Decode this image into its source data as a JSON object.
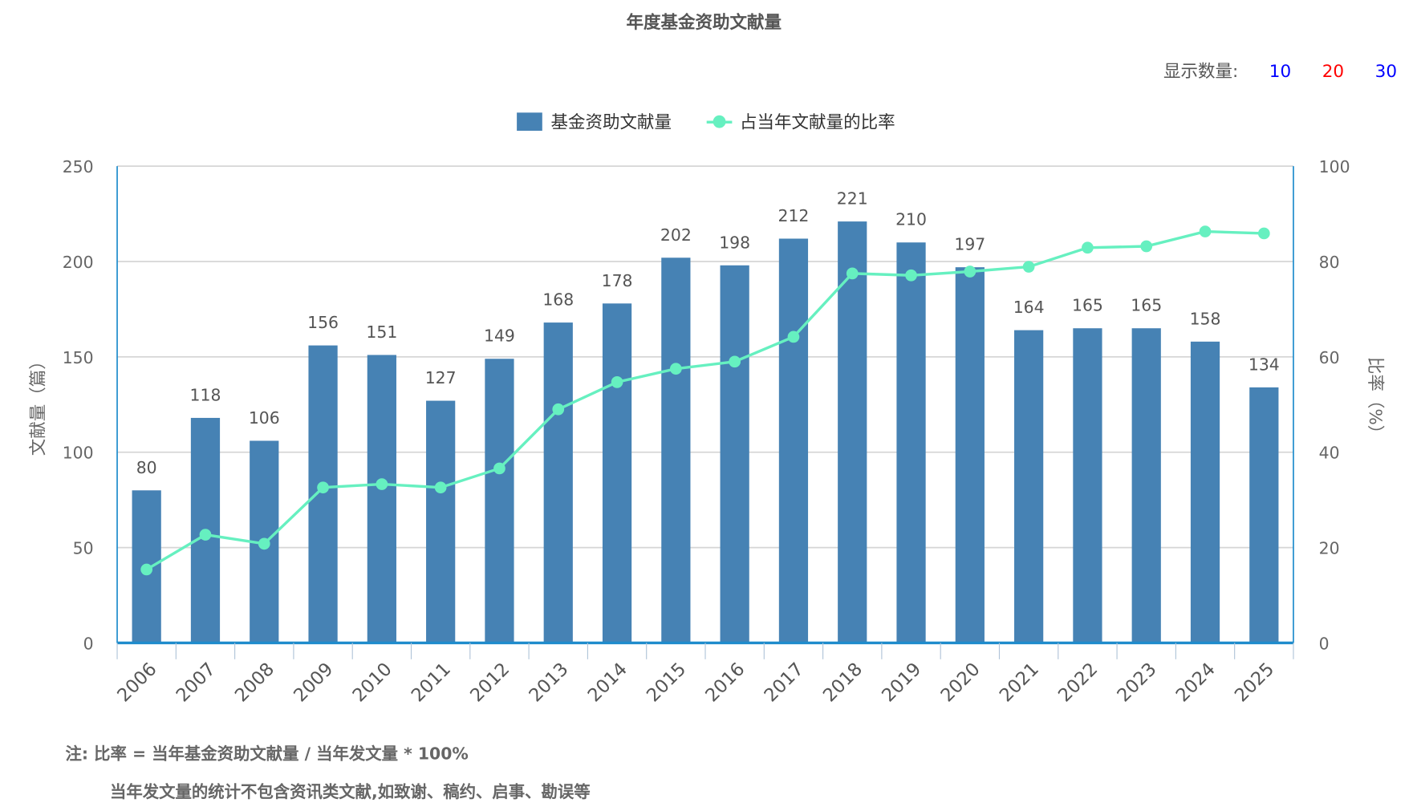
{
  "title": "年度基金资助文献量",
  "display_count": {
    "label": "显示数量:",
    "options": [
      {
        "label": "10",
        "color": "#0000ff"
      },
      {
        "label": "20",
        "color": "#ff0000"
      },
      {
        "label": "30",
        "color": "#0000ff"
      }
    ]
  },
  "notes": {
    "line1": "注:   比率 = 当年基金资助文献量 / 当年发文量 * 100%",
    "line2": "当年发文量的统计不包含资讯类文献,如致谢、稿约、启事、勘误等"
  },
  "chart_data": {
    "type": "bar",
    "title": "年度基金资助文献量",
    "categories": [
      "2006",
      "2007",
      "2008",
      "2009",
      "2010",
      "2011",
      "2012",
      "2013",
      "2014",
      "2015",
      "2016",
      "2017",
      "2018",
      "2019",
      "2020",
      "2021",
      "2022",
      "2023",
      "2024",
      "2025"
    ],
    "series": [
      {
        "name": "基金资助文献量",
        "type": "bar",
        "axis": "left",
        "color": "#4682b4",
        "values": [
          80,
          118,
          106,
          156,
          151,
          127,
          149,
          168,
          178,
          202,
          198,
          212,
          221,
          210,
          197,
          164,
          165,
          165,
          158,
          134
        ]
      },
      {
        "name": "占当年文献量的比率",
        "type": "line",
        "axis": "right",
        "color": "#66f0c0",
        "values": [
          15.4,
          22.7,
          20.8,
          32.6,
          33.3,
          32.6,
          36.6,
          49.0,
          54.7,
          57.5,
          59.0,
          64.2,
          77.5,
          77.1,
          77.9,
          78.9,
          82.9,
          83.2,
          86.3,
          85.9
        ]
      }
    ],
    "ylabel": "文献量（篇）",
    "ylim": [
      0,
      250
    ],
    "yticks": [
      "0",
      "50",
      "100",
      "150",
      "200",
      "250"
    ],
    "y2label": "比率（%）",
    "y2lim": [
      0,
      100
    ],
    "y2ticks": [
      "0",
      "20",
      "40",
      "60",
      "80",
      "100"
    ],
    "grid": true,
    "legend": "top-center"
  }
}
